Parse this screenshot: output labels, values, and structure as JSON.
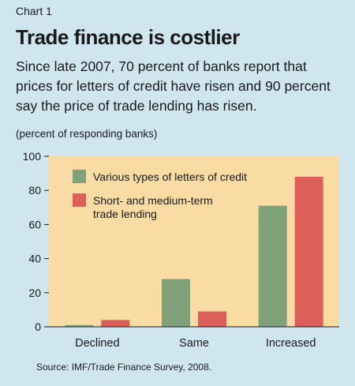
{
  "label": "Chart 1",
  "chart_data": {
    "type": "bar",
    "title": "Trade finance is costlier",
    "subtitle": "Since late 2007, 70 percent of banks report that prices for letters of credit have risen and 90 percent say the price of trade lending has risen.",
    "unit": "(percent of responding banks)",
    "categories": [
      "Declined",
      "Same",
      "Increased"
    ],
    "series": [
      {
        "name": "Various types of letters of credit",
        "color": "#7fa27a",
        "values": [
          1,
          28,
          71
        ]
      },
      {
        "name": "Short- and medium-term trade lending",
        "color": "#dc5f5a",
        "values": [
          4,
          9,
          88
        ]
      }
    ],
    "ylim": [
      0,
      100
    ],
    "yticks": [
      0,
      20,
      40,
      60,
      80,
      100
    ],
    "grid": false,
    "legend": "top-left",
    "plot_background": "#f8dca4",
    "source": "Source: IMF/Trade Finance Survey, 2008."
  }
}
